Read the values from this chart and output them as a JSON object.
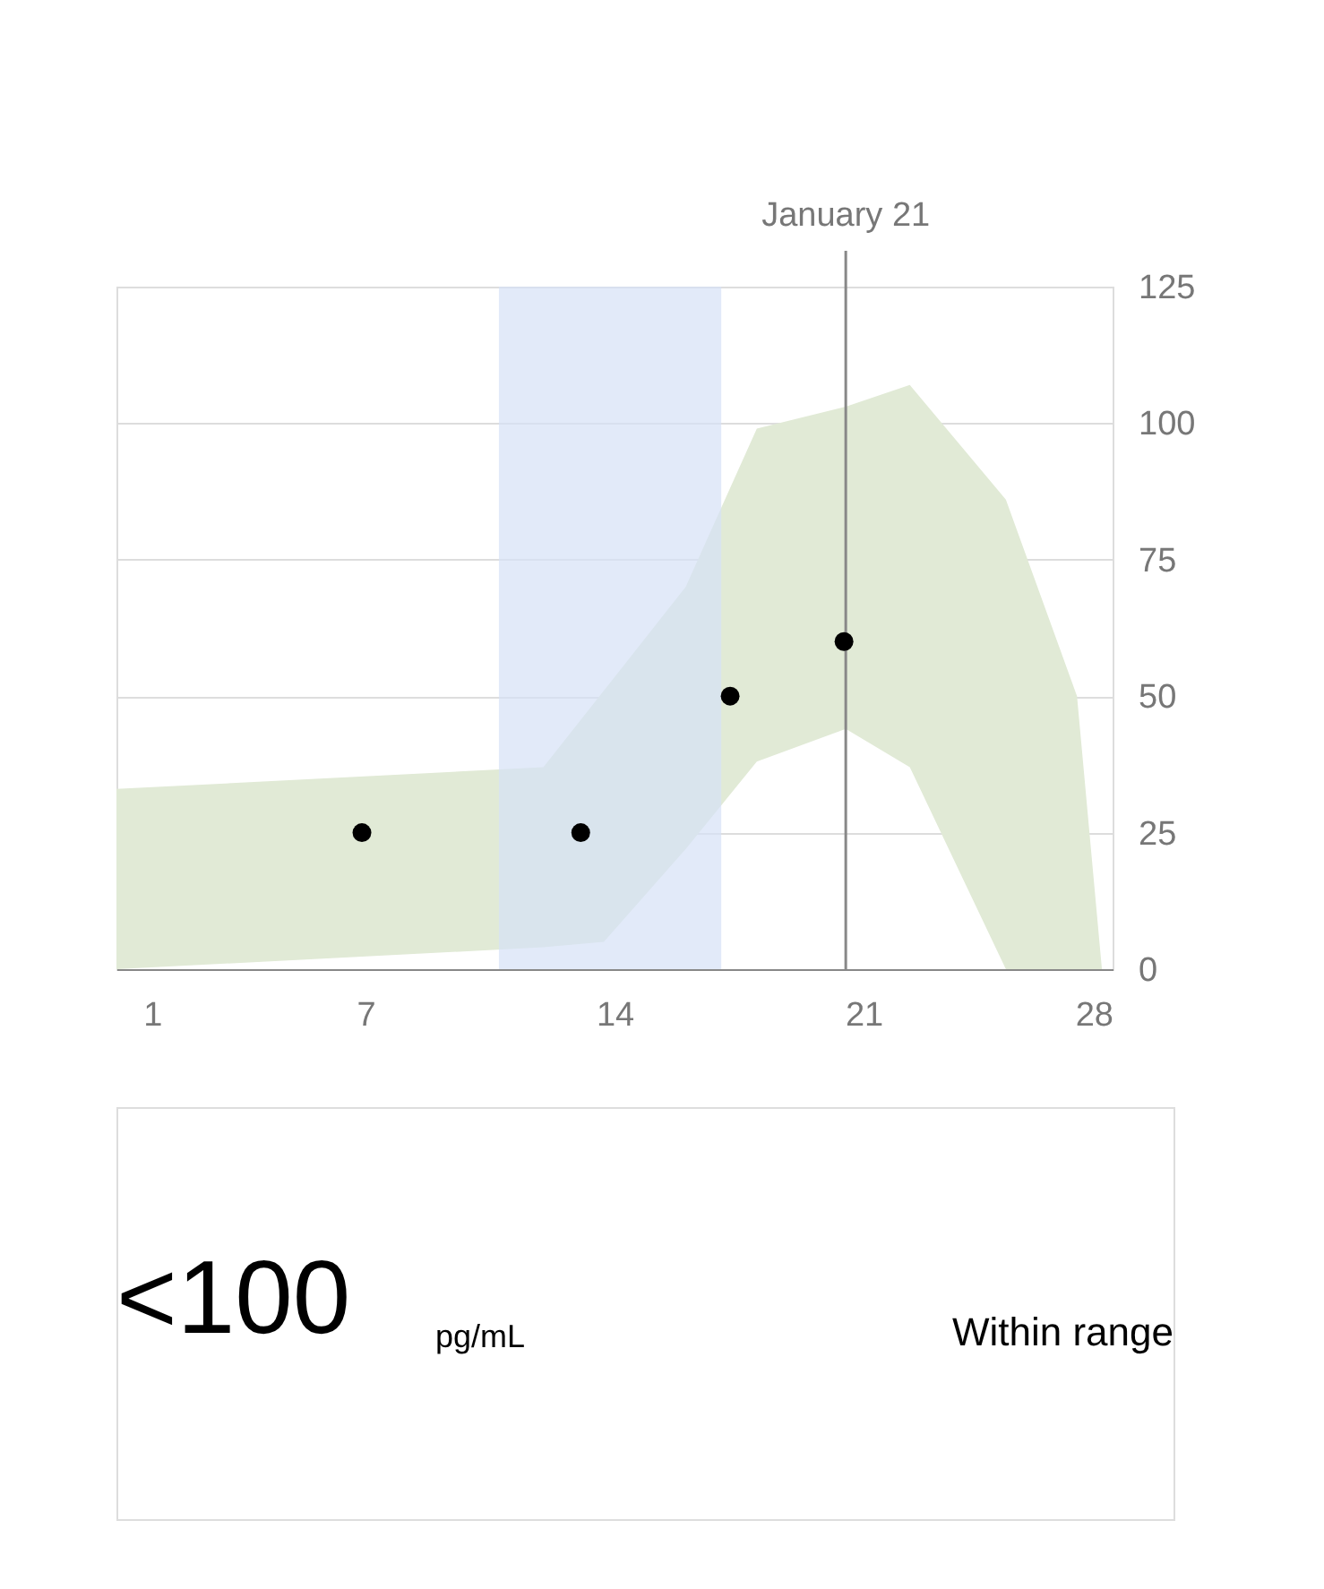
{
  "chart_data": {
    "type": "area",
    "xlim": [
      0,
      28
    ],
    "xticks": [
      {
        "value": 1,
        "label": "1"
      },
      7,
      14,
      21,
      28
    ],
    "ylim": [
      0,
      125
    ],
    "yticks": [
      0,
      25,
      50,
      75,
      100,
      125
    ],
    "grid": "y",
    "series": [
      {
        "color": "#e1ead6",
        "x": [
          0,
          12,
          13.7,
          16,
          18,
          20.5,
          22.3,
          25,
          27,
          27.7
        ],
        "values": [
          null,
          null,
          null,
          null,
          null,
          null,
          null,
          null,
          null,
          null
        ],
        "lower": [
          0,
          4,
          5,
          22,
          38,
          44,
          37,
          0,
          0,
          0
        ],
        "upper": [
          33,
          37,
          51,
          70,
          99,
          103,
          107,
          86,
          50,
          0
        ]
      },
      {
        "type": "scatter",
        "color": "#000000",
        "marker": "circle",
        "x": [
          6.9,
          13.05,
          17.25,
          20.45
        ],
        "values": [
          25,
          25,
          50,
          60
        ]
      }
    ],
    "bands": [
      {
        "axis": "x",
        "from": 10.75,
        "to": 17,
        "color": "#d6e1f7"
      }
    ],
    "ref_lines": [
      {
        "axis": "x",
        "value": 20.5,
        "label": "January 21",
        "color": "#888888"
      }
    ],
    "annotations": [
      "<100",
      "pg/mL",
      "Within range"
    ]
  }
}
